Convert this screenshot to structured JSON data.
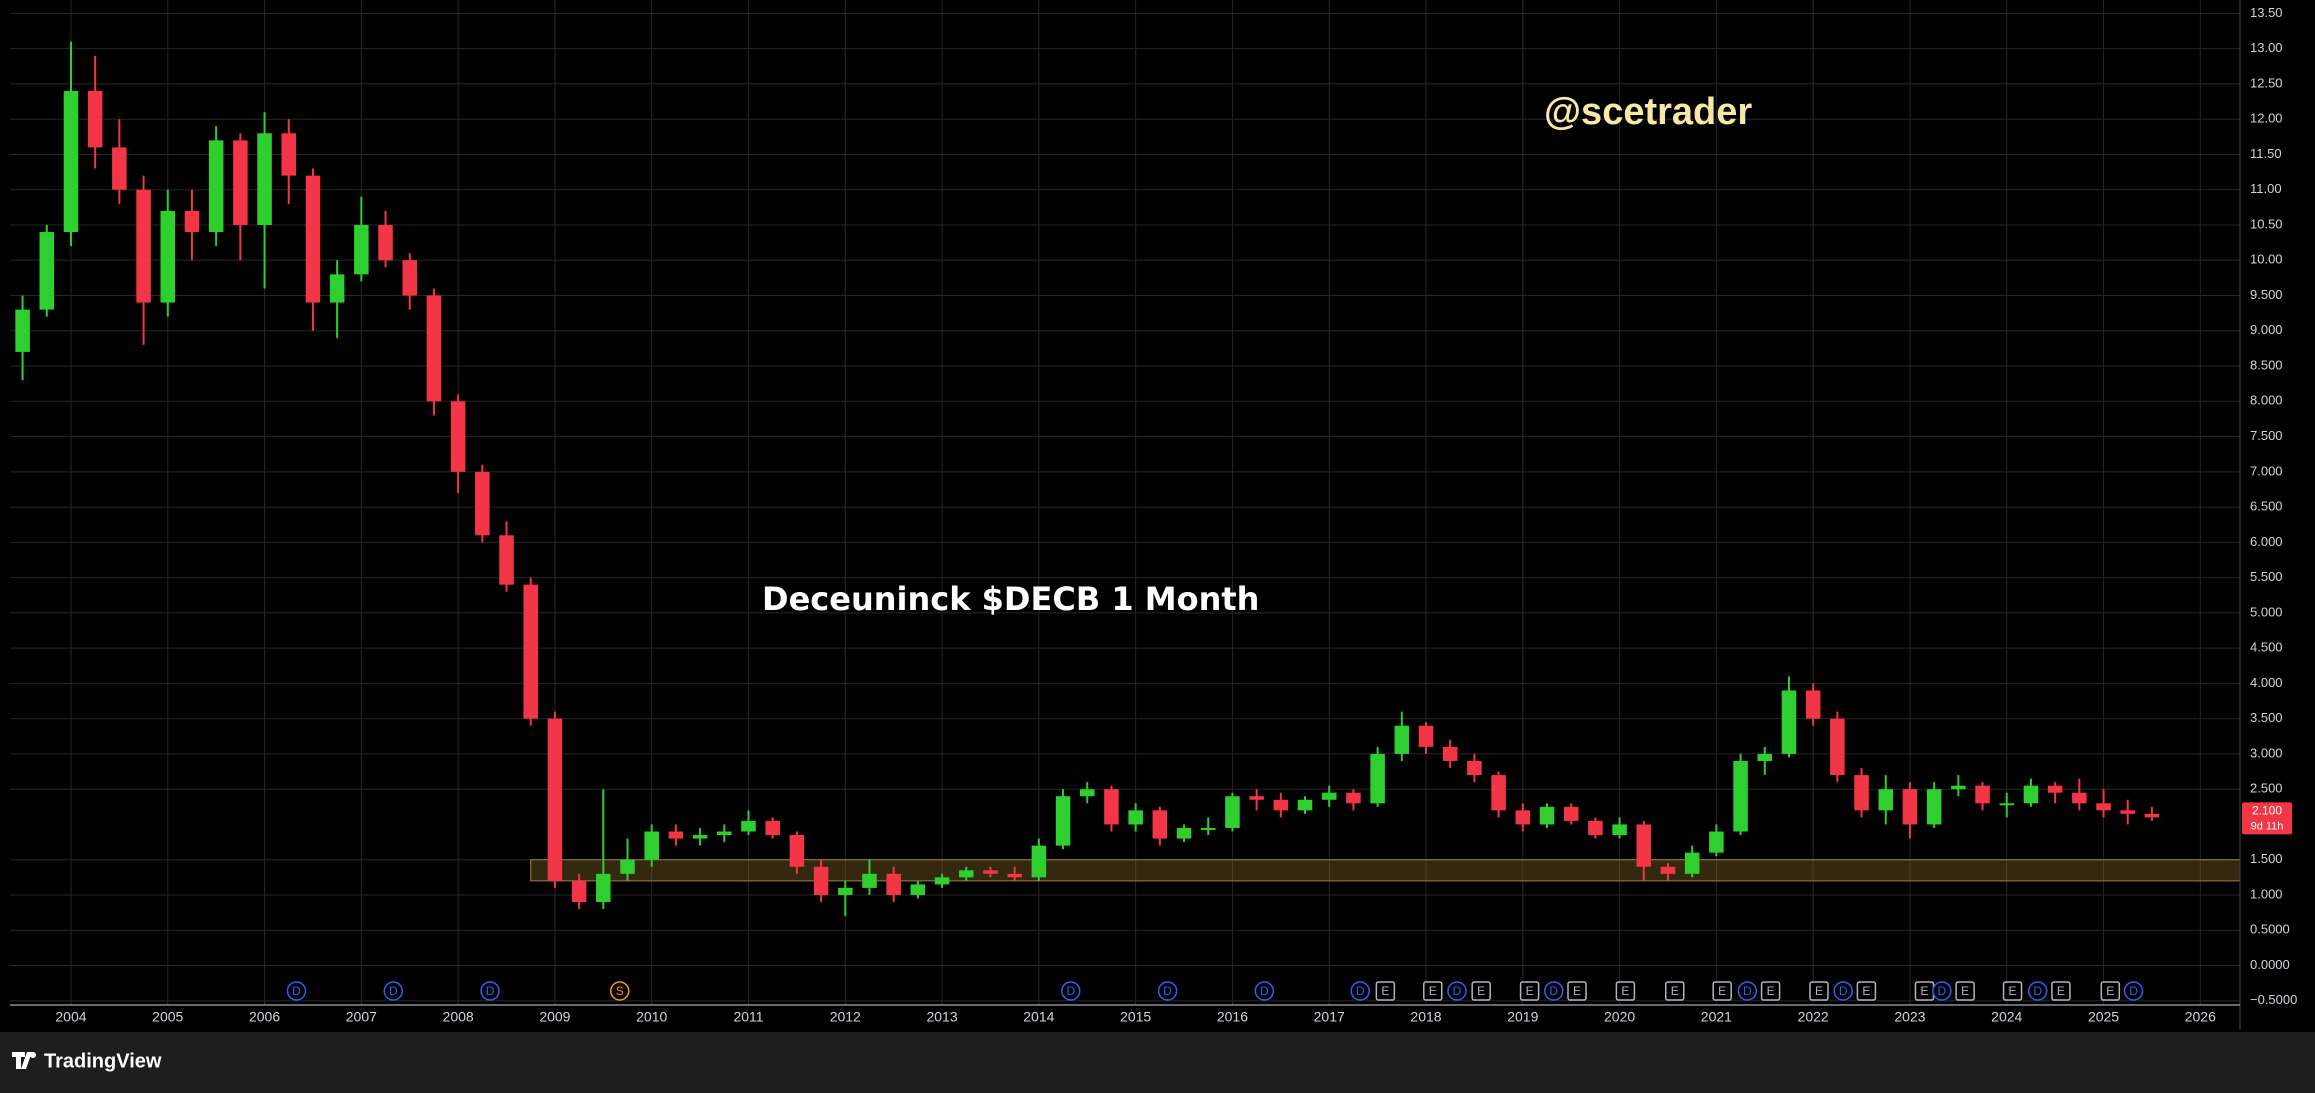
{
  "chart_data": {
    "type": "candlestick",
    "title": "Deceuninck $DECB 1 Month",
    "watermark": "@scetrader",
    "x": [
      2003.5,
      2003.75,
      2004.0,
      2004.25,
      2004.5,
      2004.75,
      2005.0,
      2005.25,
      2005.5,
      2005.75,
      2006.0,
      2006.25,
      2006.5,
      2006.75,
      2007.0,
      2007.25,
      2007.5,
      2007.75,
      2008.0,
      2008.25,
      2008.5,
      2008.75,
      2009.0,
      2009.25,
      2009.5,
      2009.75,
      2010.0,
      2010.25,
      2010.5,
      2010.75,
      2011.0,
      2011.25,
      2011.5,
      2011.75,
      2012.0,
      2012.25,
      2012.5,
      2012.75,
      2013.0,
      2013.25,
      2013.5,
      2013.75,
      2014.0,
      2014.25,
      2014.5,
      2014.75,
      2015.0,
      2015.25,
      2015.5,
      2015.75,
      2016.0,
      2016.25,
      2016.5,
      2016.75,
      2017.0,
      2017.25,
      2017.5,
      2017.75,
      2018.0,
      2018.25,
      2018.5,
      2018.75,
      2019.0,
      2019.25,
      2019.5,
      2019.75,
      2020.0,
      2020.25,
      2020.5,
      2020.75,
      2021.0,
      2021.25,
      2021.5,
      2021.75,
      2022.0,
      2022.25,
      2022.5,
      2022.75,
      2023.0,
      2023.25,
      2023.5,
      2023.75,
      2024.0,
      2024.25,
      2024.5,
      2024.75,
      2025.0,
      2025.25,
      2025.5
    ],
    "open": [
      8.7,
      9.3,
      10.4,
      12.4,
      11.6,
      11.0,
      9.4,
      10.7,
      10.4,
      11.7,
      10.5,
      11.8,
      11.2,
      9.4,
      9.8,
      10.5,
      10.0,
      9.5,
      8.0,
      7.0,
      6.1,
      5.4,
      3.5,
      1.2,
      0.9,
      1.3,
      1.5,
      1.9,
      1.8,
      1.85,
      1.9,
      2.05,
      1.85,
      1.4,
      1.0,
      1.1,
      1.3,
      1.0,
      1.15,
      1.25,
      1.35,
      1.3,
      1.25,
      1.7,
      2.4,
      2.5,
      2.0,
      2.2,
      1.8,
      1.95,
      1.95,
      2.4,
      2.35,
      2.2,
      2.35,
      2.45,
      2.3,
      3.0,
      3.4,
      3.1,
      2.9,
      2.7,
      2.2,
      2.0,
      2.25,
      2.05,
      1.85,
      2.0,
      1.4,
      1.3,
      1.6,
      1.9,
      2.9,
      3.0,
      3.9,
      3.5,
      2.7,
      2.2,
      2.5,
      2.0,
      2.5,
      2.55,
      2.3,
      2.3,
      2.55,
      2.45,
      2.3,
      2.2,
      2.15
    ],
    "high": [
      9.5,
      10.5,
      13.1,
      12.9,
      12.0,
      11.2,
      11.0,
      11.0,
      11.9,
      11.8,
      12.1,
      12.0,
      11.3,
      10.0,
      10.9,
      10.7,
      10.1,
      9.6,
      8.1,
      7.1,
      6.3,
      5.5,
      3.6,
      1.3,
      2.5,
      1.8,
      2.0,
      2.0,
      1.95,
      2.0,
      2.2,
      2.1,
      1.9,
      1.5,
      1.2,
      1.5,
      1.4,
      1.2,
      1.3,
      1.4,
      1.4,
      1.4,
      1.8,
      2.5,
      2.6,
      2.55,
      2.3,
      2.25,
      2.0,
      2.1,
      2.45,
      2.5,
      2.45,
      2.4,
      2.55,
      2.5,
      3.1,
      3.6,
      3.45,
      3.2,
      3.0,
      2.75,
      2.3,
      2.3,
      2.3,
      2.1,
      2.1,
      2.05,
      1.45,
      1.7,
      2.0,
      3.0,
      3.1,
      4.1,
      4.0,
      3.6,
      2.8,
      2.7,
      2.6,
      2.6,
      2.7,
      2.6,
      2.45,
      2.65,
      2.6,
      2.65,
      2.5,
      2.35,
      2.25
    ],
    "low": [
      8.3,
      9.2,
      10.2,
      11.3,
      10.8,
      8.8,
      9.2,
      10.0,
      10.2,
      10.0,
      9.6,
      10.8,
      9.0,
      8.9,
      9.7,
      9.9,
      9.3,
      7.8,
      6.7,
      6.0,
      5.3,
      3.4,
      1.1,
      0.8,
      0.8,
      1.2,
      1.4,
      1.7,
      1.7,
      1.75,
      1.85,
      1.8,
      1.3,
      0.9,
      0.7,
      1.0,
      0.9,
      0.95,
      1.1,
      1.2,
      1.25,
      1.2,
      1.2,
      1.65,
      2.3,
      1.9,
      1.9,
      1.7,
      1.75,
      1.85,
      1.9,
      2.2,
      2.1,
      2.15,
      2.25,
      2.2,
      2.25,
      2.9,
      3.0,
      2.8,
      2.6,
      2.1,
      1.9,
      1.95,
      2.0,
      1.8,
      1.8,
      1.2,
      1.2,
      1.25,
      1.55,
      1.85,
      2.7,
      2.95,
      3.4,
      2.6,
      2.1,
      2.0,
      1.8,
      1.95,
      2.4,
      2.2,
      2.1,
      2.25,
      2.3,
      2.2,
      2.1,
      2.0,
      2.05
    ],
    "close": [
      9.3,
      10.4,
      12.4,
      11.6,
      11.0,
      9.4,
      10.7,
      10.4,
      11.7,
      10.5,
      11.8,
      11.2,
      9.4,
      9.8,
      10.5,
      10.0,
      9.5,
      8.0,
      7.0,
      6.1,
      5.4,
      3.5,
      1.2,
      0.9,
      1.3,
      1.5,
      1.9,
      1.8,
      1.85,
      1.9,
      2.05,
      1.85,
      1.4,
      1.0,
      1.1,
      1.3,
      1.0,
      1.15,
      1.25,
      1.35,
      1.3,
      1.25,
      1.7,
      2.4,
      2.5,
      2.0,
      2.2,
      1.8,
      1.95,
      1.95,
      2.4,
      2.35,
      2.2,
      2.35,
      2.45,
      2.3,
      3.0,
      3.4,
      3.1,
      2.9,
      2.7,
      2.2,
      2.0,
      2.25,
      2.05,
      1.85,
      2.0,
      1.4,
      1.3,
      1.6,
      1.9,
      2.9,
      3.0,
      3.9,
      3.5,
      2.7,
      2.2,
      2.5,
      2.0,
      2.5,
      2.55,
      2.3,
      2.3,
      2.55,
      2.45,
      2.3,
      2.2,
      2.15,
      2.1
    ],
    "up_color": "#2fcf2f",
    "down_color": "#f23645",
    "zone": {
      "x": [
        2008.75,
        2026.41
      ],
      "y": [
        1.2,
        1.5
      ]
    },
    "events": {
      "x": [
        2006.33,
        2007.33,
        2008.33,
        2009.67,
        2014.33,
        2015.33,
        2016.33,
        2017.32,
        2017.58,
        2018.07,
        2018.32,
        2018.57,
        2019.07,
        2019.32,
        2019.56,
        2020.06,
        2020.57,
        2021.06,
        2021.32,
        2021.56,
        2022.06,
        2022.31,
        2022.55,
        2023.15,
        2023.33,
        2023.57,
        2024.06,
        2024.32,
        2024.56,
        2025.07,
        2025.31
      ],
      "labels": [
        "D",
        "D",
        "D",
        "S",
        "D",
        "D",
        "D",
        "D",
        "E",
        "E",
        "D",
        "E",
        "E",
        "D",
        "E",
        "E",
        "E",
        "E",
        "D",
        "E",
        "E",
        "D",
        "E",
        "E",
        "D",
        "E",
        "E",
        "D",
        "E",
        "E",
        "D"
      ]
    },
    "price_label": {
      "value": 2.1,
      "label": "2.100"
    },
    "countdown": "9d 11h",
    "xlim": [
      2003.37,
      2026.41
    ],
    "xticks": [
      2004,
      2005,
      2006,
      2007,
      2008,
      2009,
      2010,
      2011,
      2012,
      2013,
      2014,
      2015,
      2016,
      2017,
      2018,
      2019,
      2020,
      2021,
      2022,
      2023,
      2024,
      2025,
      2026
    ],
    "ylim": [
      -0.56,
      13.69
    ],
    "yticks": [
      {
        "value": 13.5,
        "label": "13.50"
      },
      {
        "value": 13,
        "label": "13.00"
      },
      {
        "value": 12.5,
        "label": "12.50"
      },
      {
        "value": 12,
        "label": "12.00"
      },
      {
        "value": 11.5,
        "label": "11.50"
      },
      {
        "value": 11,
        "label": "11.00"
      },
      {
        "value": 10.5,
        "label": "10.50"
      },
      {
        "value": 10,
        "label": "10.00"
      },
      {
        "value": 9.5,
        "label": "9.500"
      },
      {
        "value": 9,
        "label": "9.000"
      },
      {
        "value": 8.5,
        "label": "8.500"
      },
      {
        "value": 8,
        "label": "8.000"
      },
      {
        "value": 7.5,
        "label": "7.500"
      },
      {
        "value": 7,
        "label": "7.000"
      },
      {
        "value": 6.5,
        "label": "6.500"
      },
      {
        "value": 6,
        "label": "6.000"
      },
      {
        "value": 5.5,
        "label": "5.500"
      },
      {
        "value": 5,
        "label": "5.000"
      },
      {
        "value": 4.5,
        "label": "4.500"
      },
      {
        "value": 4,
        "label": "4.000"
      },
      {
        "value": 3.5,
        "label": "3.500"
      },
      {
        "value": 3,
        "label": "3.000"
      },
      {
        "value": 2.5,
        "label": "2.500"
      },
      {
        "value": 1.5,
        "label": "1.500"
      },
      {
        "value": 1,
        "label": "1.000"
      },
      {
        "value": 0.5,
        "label": "0.5000"
      },
      {
        "value": 0,
        "label": "0.0000"
      },
      {
        "value": -0.5,
        "label": "−0.5000"
      }
    ],
    "grid": true,
    "brand": "TradingView"
  }
}
